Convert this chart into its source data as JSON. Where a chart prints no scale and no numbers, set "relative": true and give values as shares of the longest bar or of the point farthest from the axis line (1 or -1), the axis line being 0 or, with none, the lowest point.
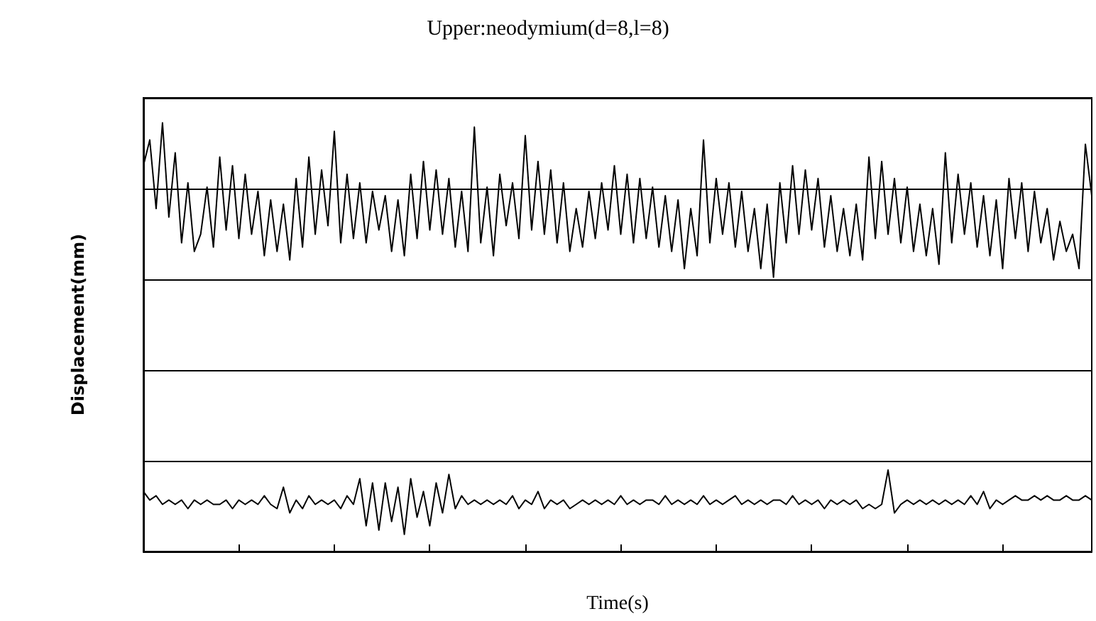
{
  "chart_data": {
    "type": "line",
    "title": "Upper:neodymium(d=8,l=8)",
    "xlabel": "Time(s)",
    "ylabel": "Displacement(mm)",
    "relative": true,
    "grid": "y",
    "marker": "none",
    "line_style": "solid",
    "categories": [
      null,
      null,
      null,
      null,
      null,
      null,
      null,
      null,
      null,
      null,
      null,
      null,
      null,
      null,
      null,
      null,
      null,
      null,
      null,
      null,
      null,
      null,
      null,
      null,
      null,
      null,
      null,
      null,
      null,
      null,
      null,
      null,
      null,
      null,
      null,
      null,
      null,
      null,
      null,
      null,
      null,
      null,
      null,
      null,
      null,
      null,
      null,
      null,
      null,
      null,
      null,
      null,
      null,
      null,
      null,
      null,
      null,
      null,
      null,
      null,
      null,
      null,
      null,
      null,
      null,
      null,
      null,
      null,
      null,
      null,
      null,
      null,
      null,
      null,
      null,
      null,
      null,
      null,
      null,
      null,
      null,
      null,
      null,
      null,
      null,
      null,
      null,
      null,
      null,
      null,
      null,
      null,
      null,
      null,
      null,
      null,
      null,
      null,
      null,
      null,
      null,
      null,
      null,
      null,
      null,
      null,
      null,
      null,
      null,
      null,
      null,
      null,
      null,
      null,
      null,
      null,
      null,
      null,
      null,
      null,
      null,
      null,
      null,
      null,
      null,
      null,
      null,
      null,
      null,
      null,
      null,
      null,
      null,
      null,
      null,
      null,
      null,
      null,
      null,
      null,
      null,
      null,
      null,
      null,
      null,
      null,
      null,
      null,
      null,
      null
    ],
    "series": [
      {
        "color": "#000000",
        "values": [
          0.9,
          0.96,
          0.8,
          1.0,
          0.78,
          0.93,
          0.72,
          0.86,
          0.7,
          0.74,
          0.85,
          0.71,
          0.92,
          0.75,
          0.9,
          0.73,
          0.88,
          0.74,
          0.84,
          0.69,
          0.82,
          0.7,
          0.81,
          0.68,
          0.87,
          0.71,
          0.92,
          0.74,
          0.89,
          0.76,
          0.98,
          0.72,
          0.88,
          0.73,
          0.86,
          0.72,
          0.84,
          0.75,
          0.83,
          0.7,
          0.82,
          0.69,
          0.88,
          0.73,
          0.91,
          0.75,
          0.89,
          0.74,
          0.87,
          0.71,
          0.84,
          0.7,
          0.99,
          0.72,
          0.85,
          0.69,
          0.88,
          0.76,
          0.86,
          0.73,
          0.97,
          0.75,
          0.91,
          0.74,
          0.89,
          0.72,
          0.86,
          0.7,
          0.8,
          0.71,
          0.84,
          0.73,
          0.86,
          0.75,
          0.9,
          0.74,
          0.88,
          0.72,
          0.87,
          0.73,
          0.85,
          0.71,
          0.83,
          0.7,
          0.82,
          0.66,
          0.8,
          0.69,
          0.96,
          0.72,
          0.87,
          0.74,
          0.86,
          0.71,
          0.84,
          0.7,
          0.8,
          0.66,
          0.81,
          0.64,
          0.86,
          0.72,
          0.9,
          0.74,
          0.89,
          0.75,
          0.87,
          0.71,
          0.83,
          0.7,
          0.8,
          0.69,
          0.81,
          0.68,
          0.92,
          0.73,
          0.91,
          0.74,
          0.87,
          0.72,
          0.85,
          0.7,
          0.81,
          0.69,
          0.8,
          0.67,
          0.93,
          0.72,
          0.88,
          0.74,
          0.86,
          0.71,
          0.83,
          0.69,
          0.82,
          0.66,
          0.87,
          0.73,
          0.86,
          0.7,
          0.84,
          0.72,
          0.8,
          0.68,
          0.77,
          0.7,
          0.74,
          0.66,
          0.95,
          0.83
        ]
      },
      {
        "color": "#000000",
        "values": [
          0.14,
          0.12,
          0.13,
          0.11,
          0.12,
          0.11,
          0.12,
          0.1,
          0.12,
          0.11,
          0.12,
          0.11,
          0.11,
          0.12,
          0.1,
          0.12,
          0.11,
          0.12,
          0.11,
          0.13,
          0.11,
          0.1,
          0.15,
          0.09,
          0.12,
          0.1,
          0.13,
          0.11,
          0.12,
          0.11,
          0.12,
          0.1,
          0.13,
          0.11,
          0.17,
          0.06,
          0.16,
          0.05,
          0.16,
          0.07,
          0.15,
          0.04,
          0.17,
          0.08,
          0.14,
          0.06,
          0.16,
          0.09,
          0.18,
          0.1,
          0.13,
          0.11,
          0.12,
          0.11,
          0.12,
          0.11,
          0.12,
          0.11,
          0.13,
          0.1,
          0.12,
          0.11,
          0.14,
          0.1,
          0.12,
          0.11,
          0.12,
          0.1,
          0.11,
          0.12,
          0.11,
          0.12,
          0.11,
          0.12,
          0.11,
          0.13,
          0.11,
          0.12,
          0.11,
          0.12,
          0.12,
          0.11,
          0.13,
          0.11,
          0.12,
          0.11,
          0.12,
          0.11,
          0.13,
          0.11,
          0.12,
          0.11,
          0.12,
          0.13,
          0.11,
          0.12,
          0.11,
          0.12,
          0.11,
          0.12,
          0.12,
          0.11,
          0.13,
          0.11,
          0.12,
          0.11,
          0.12,
          0.1,
          0.12,
          0.11,
          0.12,
          0.11,
          0.12,
          0.1,
          0.11,
          0.1,
          0.11,
          0.19,
          0.09,
          0.11,
          0.12,
          0.11,
          0.12,
          0.11,
          0.12,
          0.11,
          0.12,
          0.11,
          0.12,
          0.11,
          0.13,
          0.11,
          0.14,
          0.1,
          0.12,
          0.11,
          0.12,
          0.13,
          0.12,
          0.12,
          0.13,
          0.12,
          0.13,
          0.12,
          0.12,
          0.13,
          0.12,
          0.12,
          0.13,
          0.12
        ]
      }
    ]
  }
}
